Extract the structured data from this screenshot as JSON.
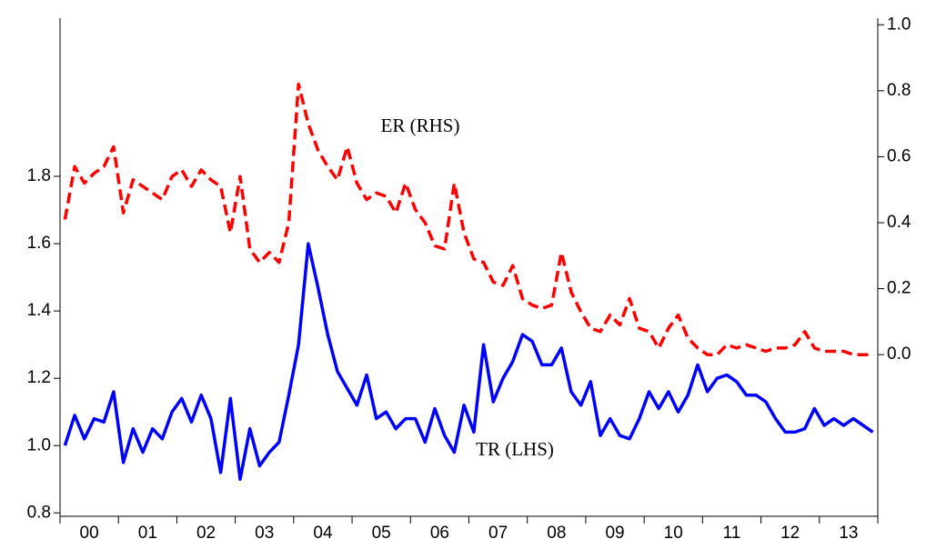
{
  "chart_data": {
    "type": "line",
    "categories": [
      null,
      null,
      null,
      "00",
      null,
      null,
      null,
      null,
      null,
      "01",
      null,
      null,
      null,
      null,
      null,
      "02",
      null,
      null,
      null,
      null,
      null,
      "03",
      null,
      null,
      null,
      null,
      null,
      "04",
      null,
      null,
      null,
      null,
      null,
      "05",
      null,
      null,
      null,
      null,
      null,
      "06",
      null,
      null,
      null,
      null,
      null,
      "07",
      null,
      null,
      null,
      null,
      null,
      "08",
      null,
      null,
      null,
      null,
      null,
      "09",
      null,
      null,
      null,
      null,
      null,
      "10",
      null,
      null,
      null,
      null,
      null,
      "11",
      null,
      null,
      null,
      null,
      null,
      "12",
      null,
      null,
      null,
      null,
      null,
      "13",
      null,
      null
    ],
    "ylim": [
      0.79,
      2.27
    ],
    "yticks": [
      0.8,
      {
        "value": 1,
        "label": "1.0"
      },
      1.2,
      1.4,
      1.6,
      1.8
    ],
    "y2lim": [
      -0.49,
      1.02
    ],
    "y2ticks": [
      {
        "value": 0,
        "label": "0.0"
      },
      0.2,
      0.4,
      0.6,
      0.8,
      {
        "value": 1,
        "label": "1.0"
      }
    ],
    "annotations": [
      "ER (RHS)",
      "TR (LHS)"
    ],
    "series": [
      {
        "name": "TR (LHS)",
        "color": "#0000ff",
        "dash": false,
        "values": [
          1.0,
          1.09,
          1.02,
          1.08,
          1.07,
          1.16,
          0.95,
          1.05,
          0.98,
          1.05,
          1.02,
          1.1,
          1.14,
          1.07,
          1.15,
          1.08,
          0.92,
          1.14,
          0.9,
          1.05,
          0.94,
          0.98,
          1.01,
          1.15,
          1.3,
          1.6,
          1.47,
          1.33,
          1.22,
          1.17,
          1.12,
          1.21,
          1.08,
          1.1,
          1.05,
          1.08,
          1.08,
          1.01,
          1.11,
          1.03,
          0.98,
          1.12,
          1.04,
          1.3,
          1.13,
          1.2,
          1.25,
          1.33,
          1.31,
          1.24,
          1.24,
          1.29,
          1.16,
          1.12,
          1.19,
          1.03,
          1.08,
          1.03,
          1.02,
          1.08,
          1.16,
          1.11,
          1.16,
          1.1,
          1.15,
          1.24,
          1.16,
          1.2,
          1.21,
          1.19,
          1.15,
          1.15,
          1.13,
          1.08,
          1.04,
          1.04,
          1.05,
          1.11,
          1.06,
          1.08,
          1.06,
          1.08,
          1.06,
          1.04
        ]
      },
      {
        "name": "ER (RHS)",
        "color": "#ff0000",
        "dash": true,
        "axis": "y2",
        "values": [
          0.41,
          0.57,
          0.52,
          0.55,
          0.57,
          0.63,
          0.43,
          0.53,
          0.51,
          0.49,
          0.47,
          0.54,
          0.56,
          0.51,
          0.56,
          0.53,
          0.51,
          0.37,
          0.54,
          0.32,
          0.28,
          0.31,
          0.28,
          0.4,
          0.82,
          0.7,
          0.62,
          0.57,
          0.53,
          0.63,
          0.52,
          0.47,
          0.49,
          0.48,
          0.43,
          0.52,
          0.44,
          0.4,
          0.33,
          0.32,
          0.52,
          0.37,
          0.29,
          0.28,
          0.22,
          0.21,
          0.27,
          0.17,
          0.15,
          0.14,
          0.15,
          0.31,
          0.19,
          0.13,
          0.08,
          0.07,
          0.12,
          0.09,
          0.17,
          0.08,
          0.07,
          0.02,
          0.08,
          0.12,
          0.05,
          0.02,
          0.0,
          0.0,
          0.03,
          0.02,
          0.03,
          0.02,
          0.01,
          0.02,
          0.02,
          0.03,
          0.07,
          0.02,
          0.01,
          0.01,
          0.01,
          0.0,
          0.0,
          0.0
        ]
      }
    ]
  }
}
